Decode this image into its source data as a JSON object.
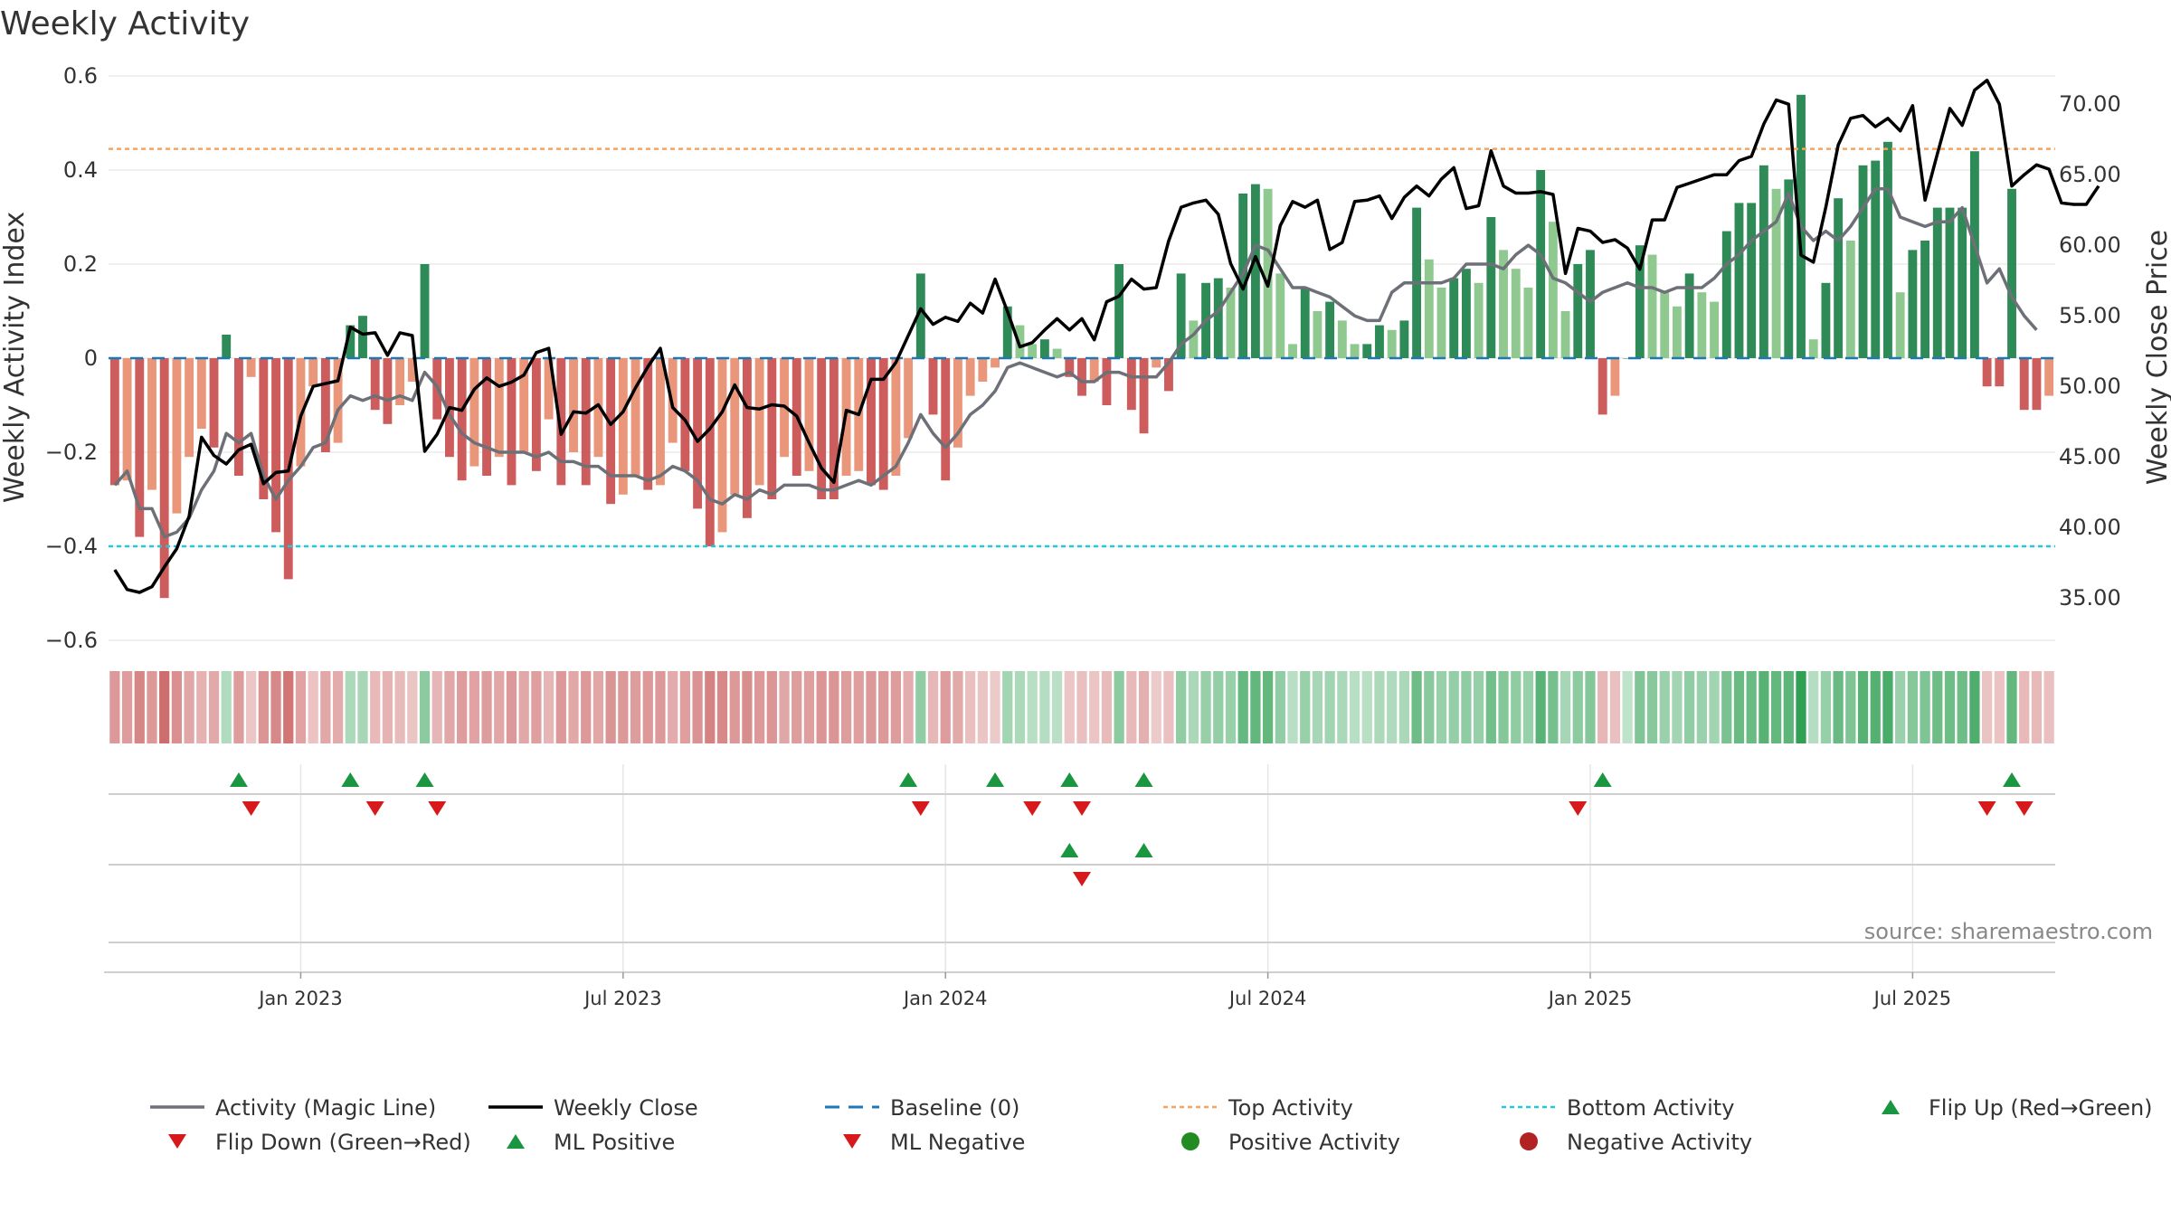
{
  "chart_data": {
    "type": "bar",
    "title": "Weekly Activity",
    "ylabel": "Weekly Activity Index",
    "ylabel_right": "Weekly Close Price",
    "ylim": [
      -0.6,
      0.6
    ],
    "ylim_right": [
      32.0,
      72.0
    ],
    "left_ticks": [
      "0.6",
      "0.4",
      "0.2",
      "0",
      "−0.2",
      "−0.4",
      "−0.6"
    ],
    "left_tick_values": [
      0.6,
      0.4,
      0.2,
      0,
      -0.2,
      -0.4,
      -0.6
    ],
    "right_ticks": [
      "70.00",
      "65.00",
      "60.00",
      "55.00",
      "50.00",
      "45.00",
      "40.00",
      "35.00"
    ],
    "right_tick_values": [
      70,
      65,
      60,
      55,
      50,
      45,
      40,
      35
    ],
    "x_ticks": [
      "Jan 2023",
      "Jul 2023",
      "Jan 2024",
      "Jul 2024",
      "Jan 2025",
      "Jul 2025"
    ],
    "x_tick_weeks": [
      15,
      41,
      67,
      93,
      119,
      145
    ],
    "top_activity": 0.445,
    "bottom_activity": -0.4,
    "baseline": 0,
    "weeks": 157,
    "activity": [
      -0.27,
      -0.26,
      -0.38,
      -0.28,
      -0.51,
      -0.33,
      -0.21,
      -0.15,
      -0.19,
      0.05,
      -0.25,
      -0.04,
      -0.3,
      -0.37,
      -0.47,
      -0.23,
      -0.06,
      -0.2,
      -0.18,
      0.07,
      0.09,
      -0.11,
      -0.14,
      -0.1,
      -0.05,
      0.2,
      -0.13,
      -0.21,
      -0.26,
      -0.23,
      -0.25,
      -0.21,
      -0.27,
      -0.2,
      -0.24,
      -0.13,
      -0.27,
      -0.2,
      -0.27,
      -0.21,
      -0.31,
      -0.29,
      -0.25,
      -0.28,
      -0.27,
      -0.18,
      -0.24,
      -0.32,
      -0.4,
      -0.37,
      -0.29,
      -0.34,
      -0.27,
      -0.3,
      -0.21,
      -0.25,
      -0.24,
      -0.3,
      -0.3,
      -0.25,
      -0.24,
      -0.27,
      -0.28,
      -0.25,
      -0.17,
      0.18,
      -0.12,
      -0.26,
      -0.19,
      -0.08,
      -0.05,
      -0.02,
      0.11,
      0.07,
      0.03,
      0.04,
      0.02,
      -0.04,
      -0.08,
      -0.05,
      -0.1,
      0.2,
      -0.11,
      -0.16,
      -0.02,
      -0.07,
      0.18,
      0.08,
      0.16,
      0.17,
      0.15,
      0.35,
      0.37,
      0.36,
      0.18,
      0.03,
      0.15,
      0.1,
      0.12,
      0.08,
      0.03,
      0.03,
      0.07,
      0.06,
      0.08,
      0.32,
      0.21,
      0.15,
      0.17,
      0.19,
      0.16,
      0.3,
      0.23,
      0.19,
      0.15,
      0.4,
      0.29,
      0.1,
      0.2,
      0.23,
      -0.12,
      -0.08,
      0.0,
      0.24,
      0.22,
      0.14,
      0.11,
      0.18,
      0.14,
      0.12,
      0.27,
      0.33,
      0.33,
      0.41,
      0.36,
      0.38,
      0.56,
      0.04,
      0.16,
      0.34,
      0.25,
      0.41,
      0.42,
      0.46,
      0.14,
      0.23,
      0.25,
      0.32,
      0.32,
      0.32,
      0.44,
      -0.06,
      -0.06,
      0.36,
      -0.11,
      -0.11,
      -0.08
    ],
    "magic_line": [
      -0.27,
      -0.24,
      -0.32,
      -0.32,
      -0.38,
      -0.37,
      -0.34,
      -0.28,
      -0.24,
      -0.16,
      -0.18,
      -0.16,
      -0.25,
      -0.3,
      -0.26,
      -0.23,
      -0.19,
      -0.18,
      -0.11,
      -0.08,
      -0.09,
      -0.08,
      -0.09,
      -0.08,
      -0.09,
      -0.03,
      -0.06,
      -0.12,
      -0.16,
      -0.18,
      -0.19,
      -0.2,
      -0.2,
      -0.2,
      -0.21,
      -0.2,
      -0.22,
      -0.22,
      -0.23,
      -0.23,
      -0.25,
      -0.25,
      -0.25,
      -0.26,
      -0.25,
      -0.23,
      -0.24,
      -0.26,
      -0.3,
      -0.31,
      -0.29,
      -0.3,
      -0.28,
      -0.29,
      -0.27,
      -0.27,
      -0.27,
      -0.28,
      -0.28,
      -0.27,
      -0.26,
      -0.27,
      -0.25,
      -0.23,
      -0.18,
      -0.12,
      -0.16,
      -0.19,
      -0.16,
      -0.12,
      -0.1,
      -0.07,
      -0.02,
      -0.01,
      -0.02,
      -0.03,
      -0.04,
      -0.03,
      -0.05,
      -0.05,
      -0.03,
      -0.03,
      -0.04,
      -0.04,
      -0.04,
      -0.01,
      0.03,
      0.05,
      0.08,
      0.1,
      0.14,
      0.18,
      0.24,
      0.23,
      0.19,
      0.15,
      0.15,
      0.14,
      0.13,
      0.11,
      0.09,
      0.08,
      0.08,
      0.14,
      0.16,
      0.16,
      0.16,
      0.16,
      0.17,
      0.2,
      0.2,
      0.2,
      0.19,
      0.22,
      0.24,
      0.22,
      0.17,
      0.16,
      0.14,
      0.12,
      0.14,
      0.15,
      0.16,
      0.15,
      0.15,
      0.14,
      0.15,
      0.15,
      0.15,
      0.17,
      0.2,
      0.22,
      0.25,
      0.27,
      0.29,
      0.35,
      0.28,
      0.25,
      0.27,
      0.25,
      0.28,
      0.32,
      0.36,
      0.36,
      0.3,
      0.29,
      0.28,
      0.29,
      0.29,
      0.32,
      0.24,
      0.16,
      0.19,
      0.13,
      0.09,
      0.06
    ],
    "weekly_close": [
      37.0,
      35.6,
      35.4,
      35.8,
      37.2,
      38.5,
      40.8,
      46.4,
      45.1,
      44.5,
      45.5,
      45.9,
      43.1,
      43.9,
      44.0,
      47.9,
      50.0,
      50.2,
      50.4,
      54.2,
      53.7,
      53.8,
      52.2,
      53.8,
      53.6,
      45.4,
      46.6,
      48.5,
      48.3,
      49.8,
      50.6,
      50.0,
      50.3,
      50.8,
      52.4,
      52.7,
      46.6,
      48.2,
      48.1,
      48.7,
      47.3,
      48.2,
      49.9,
      51.4,
      52.7,
      48.5,
      47.6,
      46.1,
      47.0,
      48.2,
      50.1,
      48.5,
      48.4,
      48.7,
      48.6,
      47.9,
      46.0,
      44.2,
      43.2,
      48.3,
      48.0,
      50.5,
      50.5,
      51.7,
      53.6,
      55.5,
      54.4,
      54.9,
      54.6,
      55.9,
      55.2,
      57.6,
      55.3,
      52.8,
      53.1,
      54.0,
      54.8,
      54.0,
      54.8,
      53.3,
      56.0,
      56.4,
      57.6,
      56.9,
      57.0,
      60.3,
      62.7,
      63.0,
      63.2,
      62.2,
      58.7,
      56.9,
      59.2,
      57.1,
      61.4,
      63.1,
      62.7,
      63.2,
      59.7,
      60.2,
      63.1,
      63.2,
      63.5,
      61.9,
      63.4,
      64.2,
      63.5,
      64.7,
      65.5,
      62.6,
      62.8,
      66.7,
      64.2,
      63.7,
      63.7,
      63.8,
      63.6,
      58.0,
      61.2,
      61.0,
      60.2,
      60.4,
      59.8,
      58.3,
      61.8,
      61.8,
      64.1,
      64.4,
      64.7,
      65.0,
      65.0,
      66.0,
      66.3,
      68.6,
      70.3,
      70.0,
      59.3,
      58.8,
      62.7,
      67.1,
      69.0,
      69.2,
      68.4,
      69.0,
      68.1,
      69.9,
      63.2,
      66.5,
      69.7,
      68.5,
      71.0,
      71.7,
      70.0,
      64.2,
      65.0,
      65.7,
      65.4,
      63.0,
      62.9,
      62.9,
      64.2
    ],
    "flip_up_row1": [
      10,
      19,
      25,
      64,
      71,
      77,
      83,
      120,
      153
    ],
    "flip_down_row1": [
      11,
      21,
      26,
      65,
      74,
      78,
      118,
      151,
      154
    ],
    "ml_up_row2": [
      77,
      83
    ],
    "ml_down_row2": [
      78
    ],
    "legend": [
      {
        "label": "Activity (Magic Line)",
        "symbol": "line",
        "color": "#6e7078"
      },
      {
        "label": "Weekly Close",
        "symbol": "line",
        "color": "#000000"
      },
      {
        "label": "Baseline (0)",
        "symbol": "dash",
        "color": "#1f77b4"
      },
      {
        "label": "Top Activity",
        "symbol": "dot",
        "color": "#f4a460"
      },
      {
        "label": "Bottom Activity",
        "symbol": "dot",
        "color": "#22c7d9"
      },
      {
        "label": "Flip Up (Red→Green)",
        "symbol": "tri-up",
        "color": "#1a9641"
      },
      {
        "label": "Flip Down (Green→Red)",
        "symbol": "tri-down",
        "color": "#d7191c"
      },
      {
        "label": "ML Positive",
        "symbol": "tri-up",
        "color": "#1a9641"
      },
      {
        "label": "ML Negative",
        "symbol": "tri-down",
        "color": "#d7191c"
      },
      {
        "label": "Positive Activity",
        "symbol": "circle",
        "color": "#228b22"
      },
      {
        "label": "Negative Activity",
        "symbol": "circle",
        "color": "#b22222"
      }
    ],
    "source": "source: sharemaestro.com"
  },
  "colors": {
    "pos_dark": "#2e8b57",
    "pos_light": "#8fc98f",
    "neg_dark": "#cd5c5c",
    "neg_light": "#e9967a",
    "magic": "#6e7078",
    "close": "#000000",
    "top": "#f4a460",
    "bottom": "#22c7d9",
    "baseline": "#1f77b4",
    "up": "#1a9641",
    "down": "#d7191c"
  }
}
